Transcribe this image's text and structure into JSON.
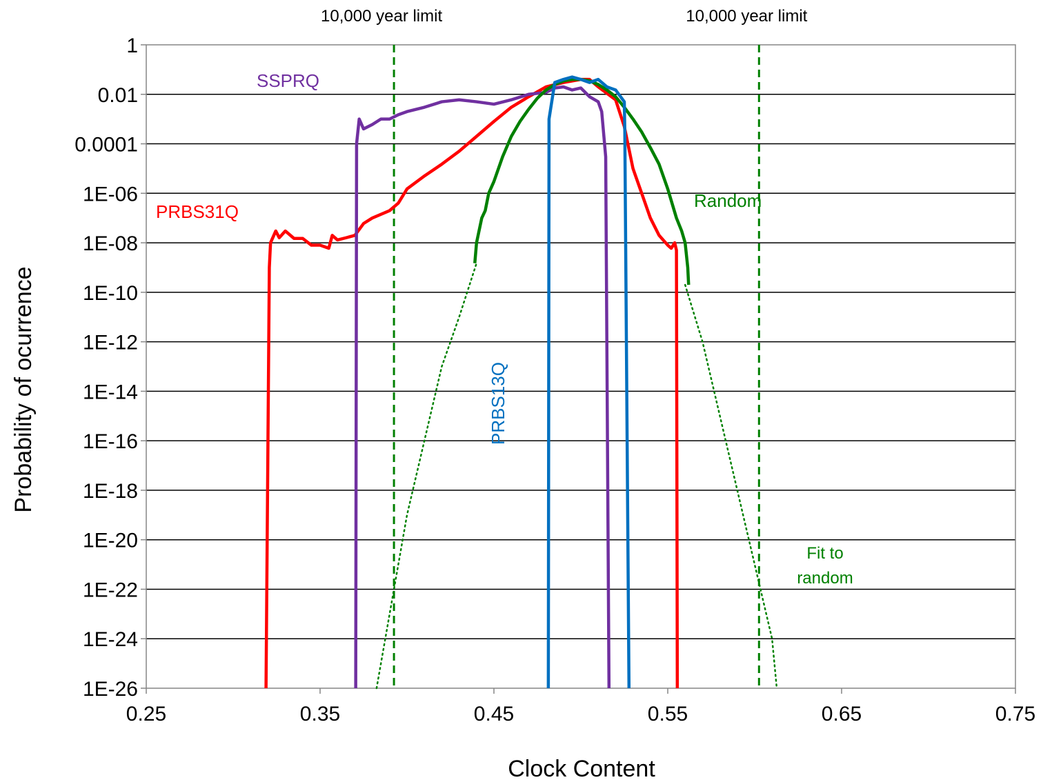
{
  "chart_data": {
    "type": "line",
    "title": "",
    "xlabel": "Clock Content",
    "ylabel": "Probability of ocurrence",
    "x_scale": "linear",
    "y_scale": "log",
    "xlim": [
      0.25,
      0.75
    ],
    "ylim": [
      1e-26,
      1
    ],
    "x_ticks": [
      0.25,
      0.35,
      0.45,
      0.55,
      0.65,
      0.75
    ],
    "x_tick_labels": [
      "0.25",
      "0.35",
      "0.45",
      "0.55",
      "0.65",
      "0.75"
    ],
    "y_ticks": [
      1,
      0.01,
      0.0001,
      1e-06,
      1e-08,
      1e-10,
      1e-12,
      1e-14,
      1e-16,
      1e-18,
      1e-20,
      1e-22,
      1e-24,
      1e-26
    ],
    "y_tick_labels": [
      "1",
      "0.01",
      "0.0001",
      "1E-06",
      "1E-08",
      "1E-10",
      "1E-12",
      "1E-14",
      "1E-16",
      "1E-18",
      "1E-20",
      "1E-22",
      "1E-24",
      "1E-26"
    ],
    "grid": "horizontal major gridlines",
    "legend": "none (series labelled directly)",
    "colors": {
      "PRBS31Q": "#ff0000",
      "SSPRQ": "#7030a0",
      "PRBS13Q": "#0070c0",
      "Random": "#008000",
      "Fit to random": "#008000",
      "limit": "#008000"
    },
    "series": [
      {
        "name": "PRBS31Q",
        "x": [
          0.3189,
          0.3208,
          0.3215,
          0.3245,
          0.3265,
          0.33,
          0.335,
          0.34,
          0.345,
          0.35,
          0.355,
          0.357,
          0.36,
          0.365,
          0.37,
          0.375,
          0.38,
          0.39,
          0.395,
          0.4,
          0.41,
          0.42,
          0.43,
          0.44,
          0.45,
          0.46,
          0.47,
          0.48,
          0.49,
          0.5,
          0.505,
          0.51,
          0.52,
          0.525,
          0.53,
          0.535,
          0.54,
          0.545,
          0.55,
          0.552,
          0.554,
          0.555,
          0.5555
        ],
        "y": [
          1e-26,
          1e-09,
          1e-08,
          3e-08,
          1.6e-08,
          3e-08,
          1.5e-08,
          1.5e-08,
          8e-09,
          8e-09,
          6e-09,
          2e-08,
          1.3e-08,
          1.6e-08,
          2e-08,
          6e-08,
          1e-07,
          2e-07,
          4e-07,
          1.5e-06,
          5e-06,
          1.5e-05,
          5e-05,
          0.0002,
          0.0008,
          0.003,
          0.008,
          0.02,
          0.03,
          0.04,
          0.04,
          0.02,
          0.006,
          0.0005,
          1e-05,
          1e-06,
          1e-07,
          2e-08,
          8e-09,
          6e-09,
          1e-08,
          5e-09,
          1e-26
        ]
      },
      {
        "name": "SSPRQ",
        "x": [
          0.3705,
          0.371,
          0.3725,
          0.375,
          0.38,
          0.385,
          0.39,
          0.395,
          0.4,
          0.41,
          0.42,
          0.43,
          0.44,
          0.45,
          0.46,
          0.47,
          0.48,
          0.485,
          0.49,
          0.495,
          0.5,
          0.505,
          0.51,
          0.512,
          0.5143,
          0.5162
        ],
        "y": [
          1e-26,
          0.0001,
          0.001,
          0.0004,
          0.0006,
          0.001,
          0.001,
          0.0015,
          0.002,
          0.003,
          0.005,
          0.006,
          0.005,
          0.004,
          0.006,
          0.01,
          0.012,
          0.018,
          0.02,
          0.015,
          0.018,
          0.008,
          0.005,
          0.002,
          3e-05,
          1e-26
        ]
      },
      {
        "name": "PRBS13Q",
        "x": [
          0.4813,
          0.4817,
          0.485,
          0.49,
          0.495,
          0.5,
          0.505,
          0.51,
          0.515,
          0.52,
          0.525,
          0.5253,
          0.5277
        ],
        "y": [
          1e-26,
          0.001,
          0.03,
          0.04,
          0.05,
          0.04,
          0.03,
          0.04,
          0.02,
          0.015,
          0.005,
          0.0003,
          1e-26
        ]
      },
      {
        "name": "Random",
        "x": [
          0.439,
          0.44,
          0.443,
          0.445,
          0.447,
          0.45,
          0.455,
          0.46,
          0.465,
          0.47,
          0.475,
          0.48,
          0.485,
          0.49,
          0.495,
          0.5,
          0.505,
          0.51,
          0.515,
          0.52,
          0.525,
          0.53,
          0.535,
          0.54,
          0.545,
          0.55,
          0.555,
          0.558,
          0.56,
          0.5615,
          0.562
        ],
        "y": [
          1.5e-09,
          1e-08,
          1e-07,
          2e-07,
          1e-06,
          3e-06,
          3e-05,
          0.0002,
          0.0008,
          0.0025,
          0.007,
          0.015,
          0.025,
          0.035,
          0.04,
          0.04,
          0.035,
          0.025,
          0.015,
          0.008,
          0.003,
          0.001,
          0.0003,
          7e-05,
          1.5e-05,
          1.5e-06,
          1e-07,
          3e-08,
          1e-08,
          1e-09,
          2e-10
        ]
      },
      {
        "name": "Fit to random",
        "x": [
          0.3825,
          0.39,
          0.4,
          0.41,
          0.42,
          0.43,
          0.44,
          0.56,
          0.57,
          0.58,
          0.59,
          0.6,
          0.61,
          0.6127
        ],
        "y": [
          1e-26,
          1e-23,
          1e-19,
          1e-16,
          1e-13,
          1e-11,
          1.5e-09,
          2e-10,
          1e-12,
          1e-15,
          1e-18,
          1e-21,
          1e-24,
          1e-26
        ]
      }
    ],
    "vlines": [
      {
        "x": 0.3925,
        "label": "10,000 year limit"
      },
      {
        "x": 0.6025,
        "label": "10,000 year limit"
      }
    ],
    "annotations": {
      "PRBS31Q": "PRBS31Q",
      "SSPRQ": "SSPRQ",
      "PRBS13Q": "PRBS13Q",
      "Random": "Random",
      "fit_line1": "Fit to",
      "fit_line2": "random"
    }
  }
}
